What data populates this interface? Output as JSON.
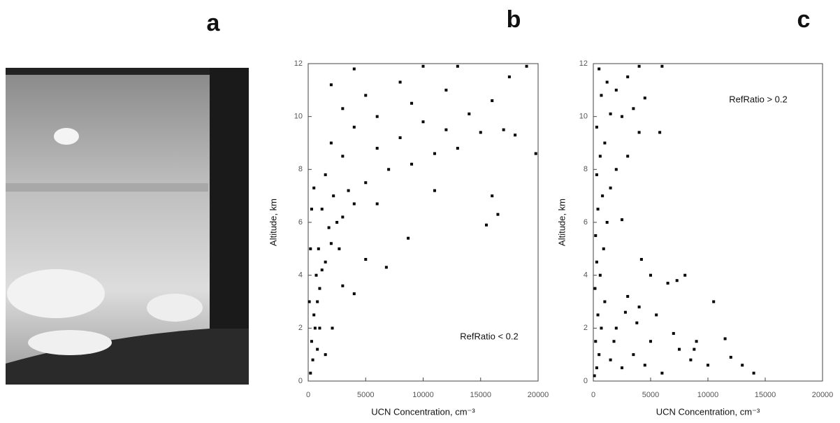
{
  "panel_a": {
    "label": "a"
  },
  "chart_data": [
    {
      "type": "scatter",
      "label": "b",
      "xlabel": "UCN Concentration, cm⁻³",
      "ylabel": "Altitude, km",
      "annotation": "RefRatio < 0.2",
      "xlim": [
        0,
        20000
      ],
      "ylim": [
        0,
        12
      ],
      "xticks": [
        0,
        5000,
        10000,
        15000,
        20000
      ],
      "yticks": [
        0,
        2,
        4,
        6,
        8,
        10,
        12
      ],
      "color": "#000000",
      "x": [
        200,
        400,
        300,
        600,
        500,
        800,
        1000,
        700,
        1200,
        1500,
        900,
        2000,
        1800,
        2500,
        3000,
        1200,
        4000,
        6000,
        2200,
        3500,
        5000,
        1500,
        7000,
        9000,
        3000,
        11000,
        6000,
        13000,
        2000,
        8000,
        15000,
        12000,
        4000,
        17000,
        10000,
        6000,
        14000,
        3000,
        9000,
        16000,
        5000,
        12000,
        2000,
        8000,
        17500,
        4000,
        10000,
        19000,
        13000,
        16000,
        16500,
        15500,
        8700,
        6800,
        4000,
        3000,
        2100,
        5000,
        11000,
        19800,
        18000,
        1500,
        100,
        200,
        300,
        500,
        1000,
        800,
        2700
      ],
      "y": [
        0.3,
        0.8,
        1.5,
        2,
        2.5,
        3,
        3.5,
        4,
        4.2,
        4.5,
        5,
        5.2,
        5.8,
        6,
        6.2,
        6.5,
        6.7,
        6.7,
        7,
        7.2,
        7.5,
        7.8,
        8,
        8.2,
        8.5,
        8.6,
        8.8,
        8.8,
        9,
        9.2,
        9.4,
        9.5,
        9.6,
        9.5,
        9.8,
        10,
        10.1,
        10.3,
        10.5,
        10.6,
        10.8,
        11,
        11.2,
        11.3,
        11.5,
        11.8,
        11.9,
        11.9,
        11.9,
        7,
        6.3,
        5.9,
        5.4,
        4.3,
        3.3,
        3.6,
        2,
        4.6,
        7.2,
        8.6,
        9.3,
        1,
        3,
        5,
        6.5,
        7.3,
        2,
        1.2,
        5
      ]
    },
    {
      "type": "scatter",
      "label": "c",
      "xlabel": "UCN Concentration, cm⁻³",
      "ylabel": "Altitude, km",
      "annotation": "RefRatio > 0.2",
      "xlim": [
        0,
        20000
      ],
      "ylim": [
        0,
        12
      ],
      "xticks": [
        0,
        5000,
        10000,
        15000,
        20000
      ],
      "yticks": [
        0,
        2,
        4,
        6,
        8,
        10,
        12
      ],
      "color": "#000000",
      "x": [
        100,
        300,
        500,
        200,
        700,
        400,
        1000,
        150,
        600,
        300,
        900,
        200,
        1200,
        2500,
        400,
        800,
        1500,
        300,
        2000,
        600,
        3000,
        1000,
        4000,
        5800,
        300,
        2500,
        1500,
        3500,
        700,
        4500,
        2000,
        1200,
        3000,
        500,
        4000,
        6000,
        10500,
        13000,
        14000,
        11500,
        9000,
        8000,
        7000,
        6500,
        5000,
        5500,
        4000,
        3000,
        2500,
        3500,
        6000,
        7500,
        8500,
        10000,
        12000,
        2000,
        1800,
        4500,
        7300,
        4200,
        5000,
        3800,
        2800,
        1500,
        8800
      ],
      "y": [
        0.2,
        0.5,
        1,
        1.5,
        2,
        2.5,
        3,
        3.5,
        4,
        4.5,
        5,
        5.5,
        6,
        6.1,
        6.5,
        7,
        7.3,
        7.8,
        8,
        8.5,
        8.5,
        9,
        9.4,
        9.4,
        9.6,
        10,
        10.1,
        10.3,
        10.8,
        10.7,
        11,
        11.3,
        11.5,
        11.8,
        11.9,
        11.9,
        3,
        0.6,
        0.3,
        1.6,
        1.5,
        4,
        1.8,
        3.7,
        1.5,
        2.5,
        2.8,
        3.2,
        0.5,
        1,
        0.3,
        1.2,
        0.8,
        0.6,
        0.9,
        2,
        1.5,
        0.6,
        3.8,
        4.6,
        4,
        2.2,
        2.6,
        0.8,
        1.2
      ]
    }
  ]
}
